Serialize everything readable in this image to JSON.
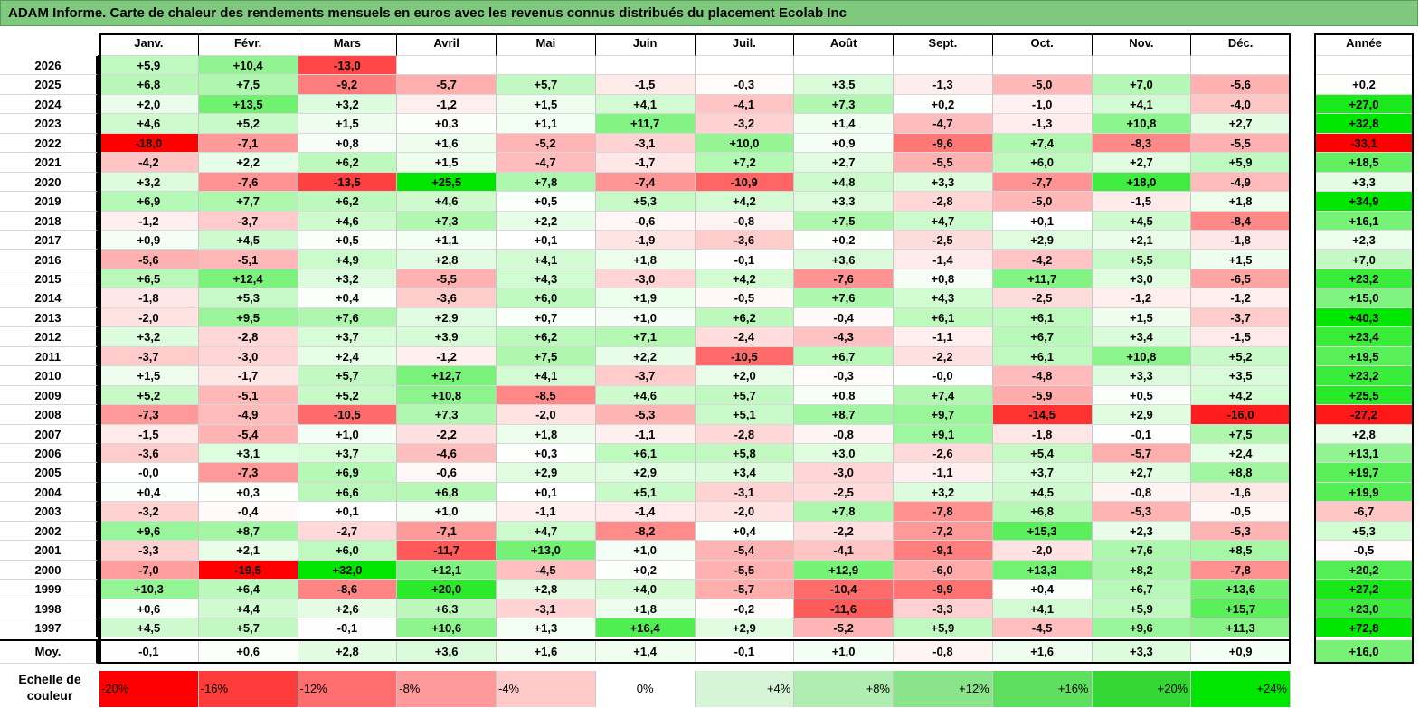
{
  "title": "ADAM Informe. Carte de chaleur des rendements mensuels en euros avec les revenus connus distribués du placement Ecolab Inc",
  "months": [
    "Janv.",
    "Févr.",
    "Mars",
    "Avril",
    "Mai",
    "Juin",
    "Juil.",
    "Août",
    "Sept.",
    "Oct.",
    "Nov.",
    "Déc."
  ],
  "year_header": "Année",
  "avg_label": "Moy.",
  "legend_label": "Echelle de couleur",
  "legend": [
    "-20%",
    "-16%",
    "-12%",
    "-8%",
    "-4%",
    "0%",
    "+4%",
    "+8%",
    "+12%",
    "+16%",
    "+20%",
    "+24%"
  ],
  "colors": {
    "negative": "#ff0000",
    "neutral": "#ffffff",
    "positive": "#00e600"
  },
  "chart_data": {
    "type": "heatmap",
    "rows": [
      {
        "year": "2026",
        "months": [
          "+5,9",
          "+10,4",
          "-13,0",
          "",
          "",
          "",
          "",
          "",
          "",
          "",
          "",
          ""
        ],
        "annual": ""
      },
      {
        "year": "2025",
        "months": [
          "+6,8",
          "+7,5",
          "-9,2",
          "-5,7",
          "+5,7",
          "-1,5",
          "-0,3",
          "+3,5",
          "-1,3",
          "-5,0",
          "+7,0",
          "-5,6"
        ],
        "annual": "+0,2"
      },
      {
        "year": "2024",
        "months": [
          "+2,0",
          "+13,5",
          "+3,2",
          "-1,2",
          "+1,5",
          "+4,1",
          "-4,1",
          "+7,3",
          "+0,2",
          "-1,0",
          "+4,1",
          "-4,0"
        ],
        "annual": "+27,0"
      },
      {
        "year": "2023",
        "months": [
          "+4,6",
          "+5,2",
          "+1,5",
          "+0,3",
          "+1,1",
          "+11,7",
          "-3,2",
          "+1,4",
          "-4,7",
          "-1,3",
          "+10,8",
          "+2,7"
        ],
        "annual": "+32,8"
      },
      {
        "year": "2022",
        "months": [
          "-18,0",
          "-7,1",
          "+0,8",
          "+1,6",
          "-5,2",
          "-3,1",
          "+10,0",
          "+0,9",
          "-9,6",
          "+7,4",
          "-8,3",
          "-5,5"
        ],
        "annual": "-33,1"
      },
      {
        "year": "2021",
        "months": [
          "-4,2",
          "+2,2",
          "+6,2",
          "+1,5",
          "-4,7",
          "-1,7",
          "+7,2",
          "+2,7",
          "-5,5",
          "+6,0",
          "+2,7",
          "+5,9"
        ],
        "annual": "+18,5"
      },
      {
        "year": "2020",
        "months": [
          "+3,2",
          "-7,6",
          "-13,5",
          "+25,5",
          "+7,8",
          "-7,4",
          "-10,9",
          "+4,8",
          "+3,3",
          "-7,7",
          "+18,0",
          "-4,9"
        ],
        "annual": "+3,3"
      },
      {
        "year": "2019",
        "months": [
          "+6,9",
          "+7,7",
          "+6,2",
          "+4,6",
          "+0,5",
          "+5,3",
          "+4,2",
          "+3,3",
          "-2,8",
          "-5,0",
          "-1,5",
          "+1,8"
        ],
        "annual": "+34,9"
      },
      {
        "year": "2018",
        "months": [
          "-1,2",
          "-3,7",
          "+4,6",
          "+7,3",
          "+2,2",
          "-0,6",
          "-0,8",
          "+7,5",
          "+4,7",
          "+0,1",
          "+4,5",
          "-8,4"
        ],
        "annual": "+16,1"
      },
      {
        "year": "2017",
        "months": [
          "+0,9",
          "+4,5",
          "+0,5",
          "+1,1",
          "+0,1",
          "-1,9",
          "-3,6",
          "+0,2",
          "-2,5",
          "+2,9",
          "+2,1",
          "-1,8"
        ],
        "annual": "+2,3"
      },
      {
        "year": "2016",
        "months": [
          "-5,6",
          "-5,1",
          "+4,9",
          "+2,8",
          "+4,1",
          "+1,8",
          "-0,1",
          "+3,6",
          "-1,4",
          "-4,2",
          "+5,5",
          "+1,5"
        ],
        "annual": "+7,0"
      },
      {
        "year": "2015",
        "months": [
          "+6,5",
          "+12,4",
          "+3,2",
          "-5,5",
          "+4,3",
          "-3,0",
          "+4,2",
          "-7,6",
          "+0,8",
          "+11,7",
          "+3,0",
          "-6,5"
        ],
        "annual": "+23,2"
      },
      {
        "year": "2014",
        "months": [
          "-1,8",
          "+5,3",
          "+0,4",
          "-3,6",
          "+6,0",
          "+1,9",
          "-0,5",
          "+7,6",
          "+4,3",
          "-2,5",
          "-1,2",
          "-1,2"
        ],
        "annual": "+15,0"
      },
      {
        "year": "2013",
        "months": [
          "-2,0",
          "+9,5",
          "+7,6",
          "+2,9",
          "+0,7",
          "+1,0",
          "+6,2",
          "-0,4",
          "+6,1",
          "+6,1",
          "+1,5",
          "-3,7"
        ],
        "annual": "+40,3"
      },
      {
        "year": "2012",
        "months": [
          "+3,2",
          "-2,8",
          "+3,7",
          "+3,9",
          "+6,2",
          "+7,1",
          "-2,4",
          "-4,3",
          "-1,1",
          "+6,7",
          "+3,4",
          "-1,5"
        ],
        "annual": "+23,4"
      },
      {
        "year": "2011",
        "months": [
          "-3,7",
          "-3,0",
          "+2,4",
          "-1,2",
          "+7,5",
          "+2,2",
          "-10,5",
          "+6,7",
          "-2,2",
          "+6,1",
          "+10,8",
          "+5,2"
        ],
        "annual": "+19,5"
      },
      {
        "year": "2010",
        "months": [
          "+1,5",
          "-1,7",
          "+5,7",
          "+12,7",
          "+4,1",
          "-3,7",
          "+2,0",
          "-0,3",
          "-0,0",
          "-4,8",
          "+3,3",
          "+3,5"
        ],
        "annual": "+23,2"
      },
      {
        "year": "2009",
        "months": [
          "+5,2",
          "-5,1",
          "+5,2",
          "+10,8",
          "-8,5",
          "+4,6",
          "+5,7",
          "+0,8",
          "+7,4",
          "-5,9",
          "+0,5",
          "+4,2"
        ],
        "annual": "+25,5"
      },
      {
        "year": "2008",
        "months": [
          "-7,3",
          "-4,9",
          "-10,5",
          "+7,3",
          "-2,0",
          "-5,3",
          "+5,1",
          "+8,7",
          "+9,7",
          "-14,5",
          "+2,9",
          "-16,0"
        ],
        "annual": "-27,2"
      },
      {
        "year": "2007",
        "months": [
          "-1,5",
          "-5,4",
          "+1,0",
          "-2,2",
          "+1,8",
          "-1,1",
          "-2,8",
          "-0,8",
          "+9,1",
          "-1,8",
          "-0,1",
          "+7,5"
        ],
        "annual": "+2,8"
      },
      {
        "year": "2006",
        "months": [
          "-3,6",
          "+3,1",
          "+3,7",
          "-4,6",
          "+0,3",
          "+6,1",
          "+5,8",
          "+3,0",
          "-2,6",
          "+5,4",
          "-5,7",
          "+2,4"
        ],
        "annual": "+13,1"
      },
      {
        "year": "2005",
        "months": [
          "-0,0",
          "-7,3",
          "+6,9",
          "-0,6",
          "+2,9",
          "+2,9",
          "+3,4",
          "-3,0",
          "-1,1",
          "+3,7",
          "+2,7",
          "+8,8"
        ],
        "annual": "+19,7"
      },
      {
        "year": "2004",
        "months": [
          "+0,4",
          "+0,3",
          "+6,6",
          "+6,8",
          "+0,1",
          "+5,1",
          "-3,1",
          "-2,5",
          "+3,2",
          "+4,5",
          "-0,8",
          "-1,6"
        ],
        "annual": "+19,9"
      },
      {
        "year": "2003",
        "months": [
          "-3,2",
          "-0,4",
          "+0,1",
          "+1,0",
          "-1,1",
          "-1,4",
          "-2,0",
          "+7,8",
          "-7,8",
          "+6,8",
          "-5,3",
          "-0,5"
        ],
        "annual": "-6,7"
      },
      {
        "year": "2002",
        "months": [
          "+9,6",
          "+8,7",
          "-2,7",
          "-7,1",
          "+4,7",
          "-8,2",
          "+0,4",
          "-2,2",
          "-7,2",
          "+15,3",
          "+2,3",
          "-5,3"
        ],
        "annual": "+5,3"
      },
      {
        "year": "2001",
        "months": [
          "-3,3",
          "+2,1",
          "+6,0",
          "-11,7",
          "+13,0",
          "+1,0",
          "-5,4",
          "-4,1",
          "-9,1",
          "-2,0",
          "+7,6",
          "+8,5"
        ],
        "annual": "-0,5"
      },
      {
        "year": "2000",
        "months": [
          "-7,0",
          "-19,5",
          "+32,0",
          "+12,1",
          "-4,5",
          "+0,2",
          "-5,5",
          "+12,9",
          "-6,0",
          "+13,3",
          "+8,2",
          "-7,8"
        ],
        "annual": "+20,2"
      },
      {
        "year": "1999",
        "months": [
          "+10,3",
          "+6,4",
          "-8,6",
          "+20,0",
          "+2,8",
          "+4,0",
          "-5,7",
          "-10,4",
          "-9,9",
          "+0,4",
          "+6,7",
          "+13,6"
        ],
        "annual": "+27,2"
      },
      {
        "year": "1998",
        "months": [
          "+0,6",
          "+4,4",
          "+2,6",
          "+6,3",
          "-3,1",
          "+1,8",
          "-0,2",
          "-11,6",
          "-3,3",
          "+4,1",
          "+5,9",
          "+15,7"
        ],
        "annual": "+23,0"
      },
      {
        "year": "1997",
        "months": [
          "+4,5",
          "+5,7",
          "-0,1",
          "+10,6",
          "+1,3",
          "+16,4",
          "+2,9",
          "-5,2",
          "+5,9",
          "-4,5",
          "+9,6",
          "+11,3"
        ],
        "annual": "+72,8"
      }
    ],
    "average": {
      "months": [
        "-0,1",
        "+0,6",
        "+2,8",
        "+3,6",
        "+1,6",
        "+1,4",
        "-0,1",
        "+1,0",
        "-0,8",
        "+1,6",
        "+3,3",
        "+0,9"
      ],
      "annual": "+16,0"
    },
    "scale_min": -20,
    "scale_max": 24
  }
}
